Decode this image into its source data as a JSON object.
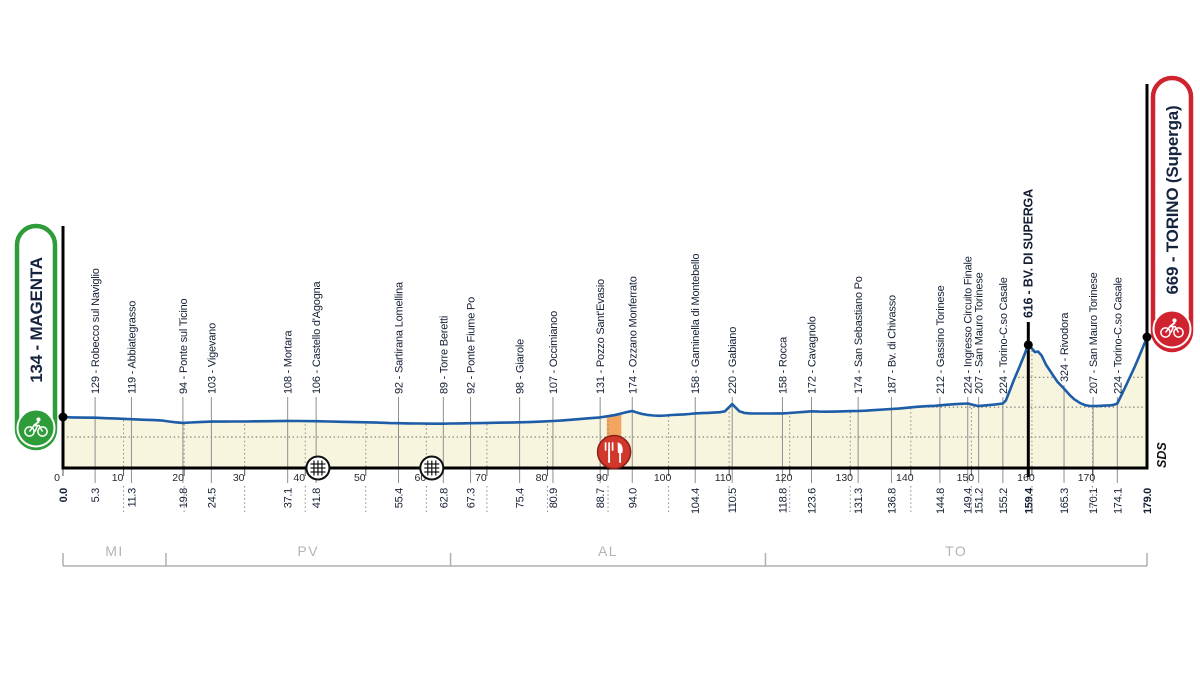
{
  "chart_data": {
    "type": "area",
    "subject": "cycling-stage-elevation-profile",
    "x_unit": "km",
    "total_km": 179.0,
    "start": {
      "km": 0.0,
      "elev": 134,
      "label": "134 - MAGENTA",
      "km_label": "0.0"
    },
    "finish": {
      "km": 179.0,
      "elev": 669,
      "label": "669 - TORINO (Superga)",
      "km_label": "179.0"
    },
    "waypoints": [
      {
        "km": 5.3,
        "km_label": "5.3",
        "elev": 129,
        "name": "Robecco sul Naviglio",
        "label": "129 - Robecco sul Naviglio"
      },
      {
        "km": 11.3,
        "km_label": "11.3",
        "elev": 119,
        "name": "Abbiategrasso",
        "label": "119 - Abbiategrasso"
      },
      {
        "km": 19.8,
        "km_label": "19.8",
        "elev": 94,
        "name": "Ponte sul Ticino",
        "label": "94 - Ponte sul Ticino"
      },
      {
        "km": 24.5,
        "km_label": "24.5",
        "elev": 103,
        "name": "Vigevano",
        "label": "103 - Vigevano"
      },
      {
        "km": 37.1,
        "km_label": "37.1",
        "elev": 108,
        "name": "Mortara",
        "label": "108 - Mortara"
      },
      {
        "km": 41.8,
        "km_label": "41.8",
        "elev": 106,
        "name": "Castello d'Agogna",
        "label": "106 - Castello d'Agogna"
      },
      {
        "km": 55.4,
        "km_label": "55.4",
        "elev": 92,
        "name": "Sartirana Lomellina",
        "label": "92 - Sartirana Lomellina"
      },
      {
        "km": 62.8,
        "km_label": "62.8",
        "elev": 89,
        "name": "Torre Beretti",
        "label": "89 - Torre Beretti"
      },
      {
        "km": 67.3,
        "km_label": "67.3",
        "elev": 92,
        "name": "Ponte Fiume Po",
        "label": "92 - Ponte Fiume Po"
      },
      {
        "km": 75.4,
        "km_label": "75.4",
        "elev": 98,
        "name": "Giarole",
        "label": "98 - Giarole"
      },
      {
        "km": 80.9,
        "km_label": "80.9",
        "elev": 107,
        "name": "Occimianoo",
        "label": "107 - Occimianoo"
      },
      {
        "km": 88.7,
        "km_label": "88.7",
        "elev": 131,
        "name": "Pozzo Sant'Evasio",
        "label": "131 - Pozzo Sant'Evasio"
      },
      {
        "km": 94.0,
        "km_label": "94.0",
        "elev": 174,
        "name": "Ozzano Monferrato",
        "label": "174 - Ozzano Monferrato"
      },
      {
        "km": 104.4,
        "km_label": "104.4",
        "elev": 158,
        "name": "Gaminella di Montebello",
        "label": "158 - Gaminella di Montebello"
      },
      {
        "km": 110.5,
        "km_label": "110.5",
        "elev": 220,
        "name": "Gabiano",
        "label": "220 - Gabiano"
      },
      {
        "km": 118.8,
        "km_label": "118.8",
        "elev": 158,
        "name": "Rocca",
        "label": "158 - Rocca"
      },
      {
        "km": 123.6,
        "km_label": "123.6",
        "elev": 172,
        "name": "Cavagnolo",
        "label": "172 - Cavagnolo"
      },
      {
        "km": 131.3,
        "km_label": "131.3",
        "elev": 174,
        "name": "San Sebastiano Po",
        "label": "174 - San Sebastiano Po"
      },
      {
        "km": 136.8,
        "km_label": "136.8",
        "elev": 187,
        "name": "Bv. di Chivasso",
        "label": "187 - Bv. di Chivasso"
      },
      {
        "km": 144.8,
        "km_label": "144.8",
        "elev": 212,
        "name": "Gassino Torinese",
        "label": "212 - Gassino Torinese"
      },
      {
        "km": 149.4,
        "km_label": "149.4",
        "elev": 224,
        "name": "Ingresso Circuito Finale",
        "label": "224 - Ingresso Circuito Finale"
      },
      {
        "km": 151.2,
        "km_label": "151.2",
        "elev": 207,
        "name": "San Mauro Torinese",
        "label": "207 - San Mauro Torinese"
      },
      {
        "km": 155.2,
        "km_label": "155.2",
        "elev": 224,
        "name": "Torino-C.so Casale",
        "label": "224 - Torino-C.so Casale"
      },
      {
        "km": 159.4,
        "km_label": "159.4",
        "elev": 616,
        "name": "BV. DI SUPERGA",
        "label": "616 - BV. DI SUPERGA",
        "bold": true
      },
      {
        "km": 165.3,
        "km_label": "165.3",
        "elev": 324,
        "name": "Rivodora",
        "label": "324 - Rivodora"
      },
      {
        "km": 170.1,
        "km_label": "170.1",
        "elev": 207,
        "name": "San Mauro Torinese",
        "label": "207 - San Mauro Torinese"
      },
      {
        "km": 174.1,
        "km_label": "174.1",
        "elev": 224,
        "name": "Torino-C.so Casale",
        "label": "224 - Torino-C.so Casale"
      }
    ],
    "x_ticks": [
      {
        "km": 0,
        "label": "0"
      },
      {
        "km": 10,
        "label": "10"
      },
      {
        "km": 20,
        "label": "20"
      },
      {
        "km": 30,
        "label": "30"
      },
      {
        "km": 40,
        "label": "40"
      },
      {
        "km": 50,
        "label": "50"
      },
      {
        "km": 60,
        "label": "60"
      },
      {
        "km": 70,
        "label": "70"
      },
      {
        "km": 80,
        "label": "80"
      },
      {
        "km": 90,
        "label": "90"
      },
      {
        "km": 100,
        "label": "100"
      },
      {
        "km": 110,
        "label": "110"
      },
      {
        "km": 120,
        "label": "120"
      },
      {
        "km": 130,
        "label": "130"
      },
      {
        "km": 140,
        "label": "140"
      },
      {
        "km": 150,
        "label": "150"
      },
      {
        "km": 160,
        "label": "160"
      },
      {
        "km": 170,
        "label": "170"
      }
    ],
    "gridlines_elev_m": [
      0,
      200,
      400,
      600
    ],
    "provinces": [
      {
        "code": "MI",
        "from_km": 0,
        "to_km": 17
      },
      {
        "code": "PV",
        "from_km": 17,
        "to_km": 64
      },
      {
        "code": "AL",
        "from_km": 64,
        "to_km": 116
      },
      {
        "code": "TO",
        "from_km": 116,
        "to_km": 179
      }
    ],
    "markers": {
      "feed_zone": {
        "km_from": 89.8,
        "km_to": 92.2,
        "icon": "fork-knife"
      },
      "level_crossings_km": [
        42.1,
        60.9
      ]
    },
    "branding": {
      "sds": "SDS"
    },
    "colors": {
      "profile_line": "#1d5ca6",
      "profile_fill": "#f8f5df",
      "feed_zone": "#f3a45f",
      "feed_icon_red": "#d2372c",
      "start_accent": "#2f9c3a",
      "finish_accent": "#d02330",
      "label_text": "#141e33",
      "muted_line": "#8f8f8f",
      "province_gray": "#b4b4b4",
      "axis_black": "#000000"
    },
    "profile": [
      [
        0,
        134
      ],
      [
        1.5,
        131
      ],
      [
        3,
        130
      ],
      [
        5.3,
        129
      ],
      [
        7,
        126
      ],
      [
        9,
        123
      ],
      [
        11.3,
        119
      ],
      [
        13,
        116
      ],
      [
        15,
        113
      ],
      [
        16.5,
        110
      ],
      [
        17.5,
        104
      ],
      [
        18.6,
        98
      ],
      [
        19.8,
        94
      ],
      [
        21,
        97
      ],
      [
        22.5,
        100
      ],
      [
        24.5,
        103
      ],
      [
        26,
        103
      ],
      [
        28,
        104
      ],
      [
        30,
        104
      ],
      [
        32,
        105
      ],
      [
        34,
        106
      ],
      [
        37.1,
        108
      ],
      [
        39,
        107
      ],
      [
        41.8,
        106
      ],
      [
        44,
        104
      ],
      [
        46,
        102
      ],
      [
        48,
        100
      ],
      [
        50,
        98
      ],
      [
        52,
        96
      ],
      [
        54,
        93
      ],
      [
        55.4,
        92
      ],
      [
        57,
        91
      ],
      [
        59,
        90
      ],
      [
        61,
        89
      ],
      [
        62.8,
        89
      ],
      [
        64,
        90
      ],
      [
        65.5,
        91
      ],
      [
        67.3,
        92
      ],
      [
        69,
        93
      ],
      [
        71,
        95
      ],
      [
        73,
        96
      ],
      [
        75.4,
        98
      ],
      [
        77,
        100
      ],
      [
        79,
        103
      ],
      [
        80.9,
        107
      ],
      [
        82.5,
        111
      ],
      [
        84,
        116
      ],
      [
        85.5,
        121
      ],
      [
        87,
        126
      ],
      [
        88.7,
        131
      ],
      [
        90,
        139
      ],
      [
        91,
        146
      ],
      [
        92,
        155
      ],
      [
        93,
        166
      ],
      [
        94,
        174
      ],
      [
        94.6,
        166
      ],
      [
        95.5,
        155
      ],
      [
        96.5,
        148
      ],
      [
        97.5,
        144
      ],
      [
        98.5,
        142
      ],
      [
        99.5,
        144
      ],
      [
        100.5,
        147
      ],
      [
        101.5,
        149
      ],
      [
        102.5,
        151
      ],
      [
        103.4,
        154
      ],
      [
        104.4,
        158
      ],
      [
        105.5,
        160
      ],
      [
        106.5,
        161
      ],
      [
        107.5,
        163
      ],
      [
        108.5,
        166
      ],
      [
        109.3,
        172
      ],
      [
        109.9,
        196
      ],
      [
        110.5,
        220
      ],
      [
        111.1,
        196
      ],
      [
        111.7,
        172
      ],
      [
        112.5,
        161
      ],
      [
        113.5,
        158
      ],
      [
        115,
        157
      ],
      [
        116.5,
        157
      ],
      [
        118,
        158
      ],
      [
        118.8,
        158
      ],
      [
        119.8,
        160
      ],
      [
        121,
        164
      ],
      [
        122.3,
        168
      ],
      [
        123.6,
        172
      ],
      [
        124.8,
        170
      ],
      [
        126,
        169
      ],
      [
        127.5,
        170
      ],
      [
        129,
        172
      ],
      [
        130.2,
        173
      ],
      [
        131.3,
        174
      ],
      [
        132.5,
        176
      ],
      [
        134,
        180
      ],
      [
        135.5,
        184
      ],
      [
        136.8,
        187
      ],
      [
        138,
        190
      ],
      [
        139.5,
        196
      ],
      [
        141,
        202
      ],
      [
        142.5,
        206
      ],
      [
        144,
        209
      ],
      [
        144.8,
        212
      ],
      [
        146,
        216
      ],
      [
        147.5,
        220
      ],
      [
        149.4,
        224
      ],
      [
        150.3,
        215
      ],
      [
        151.2,
        207
      ],
      [
        152,
        210
      ],
      [
        153,
        214
      ],
      [
        154,
        218
      ],
      [
        155.2,
        224
      ],
      [
        155.7,
        245
      ],
      [
        156.3,
        305
      ],
      [
        157,
        380
      ],
      [
        157.8,
        455
      ],
      [
        158.6,
        535
      ],
      [
        159.4,
        616
      ],
      [
        160,
        592
      ],
      [
        160.5,
        568
      ],
      [
        161,
        572
      ],
      [
        161.6,
        545
      ],
      [
        162.3,
        485
      ],
      [
        163.2,
        430
      ],
      [
        164.2,
        370
      ],
      [
        165.3,
        324
      ],
      [
        166.2,
        282
      ],
      [
        167,
        252
      ],
      [
        168,
        226
      ],
      [
        168.8,
        213
      ],
      [
        169.5,
        208
      ],
      [
        170.1,
        207
      ],
      [
        171,
        208
      ],
      [
        172,
        210
      ],
      [
        173,
        212
      ],
      [
        173.6,
        216
      ],
      [
        174.1,
        224
      ],
      [
        174.8,
        282
      ],
      [
        175.5,
        342
      ],
      [
        176.2,
        402
      ],
      [
        177,
        472
      ],
      [
        177.8,
        548
      ],
      [
        178.5,
        618
      ],
      [
        179,
        669
      ]
    ]
  }
}
